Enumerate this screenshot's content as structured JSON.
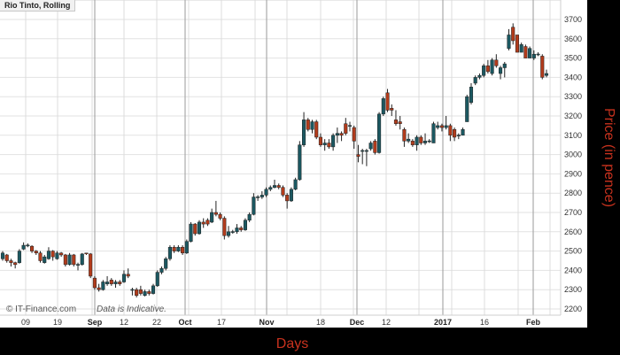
{
  "chart_data": {
    "type": "candlestick",
    "title": "Rio Tinto, Rolling",
    "xlabel": "Days",
    "ylabel": "Price (in pence)",
    "ylim": [
      2170,
      3800
    ],
    "y_ticks": [
      2200,
      2300,
      2400,
      2500,
      2600,
      2700,
      2800,
      2900,
      3000,
      3100,
      3200,
      3300,
      3400,
      3500,
      3600,
      3700
    ],
    "x_tick_labels": [
      "09",
      "19",
      "Sep",
      "12",
      "22",
      "Oct",
      "17",
      "Nov",
      "18",
      "Dec",
      "12",
      "2017",
      "16",
      "Feb"
    ],
    "grid": true,
    "colors": {
      "up": "#1b5861",
      "down": "#b23b1b",
      "axis_title": "#c8321e"
    },
    "ohlc_fields": [
      "open",
      "high",
      "low",
      "close"
    ],
    "candles": [
      [
        2460,
        2500,
        2450,
        2490
      ],
      [
        2480,
        2485,
        2440,
        2450
      ],
      [
        2450,
        2460,
        2420,
        2440
      ],
      [
        2440,
        2445,
        2410,
        2430
      ],
      [
        2440,
        2510,
        2435,
        2500
      ],
      [
        2510,
        2545,
        2505,
        2530
      ],
      [
        2530,
        2540,
        2520,
        2531
      ],
      [
        2525,
        2530,
        2490,
        2500
      ],
      [
        2500,
        2505,
        2480,
        2490
      ],
      [
        2490,
        2500,
        2440,
        2450
      ],
      [
        2440,
        2480,
        2435,
        2470
      ],
      [
        2460,
        2520,
        2455,
        2500
      ],
      [
        2500,
        2505,
        2450,
        2470
      ],
      [
        2460,
        2500,
        2455,
        2490
      ],
      [
        2490,
        2495,
        2470,
        2480
      ],
      [
        2480,
        2485,
        2420,
        2430
      ],
      [
        2430,
        2490,
        2425,
        2480
      ],
      [
        2480,
        2485,
        2420,
        2430
      ],
      [
        2430,
        2440,
        2400,
        2431
      ],
      [
        2430,
        2490,
        2425,
        2485
      ],
      [
        2490,
        2490,
        2480,
        2486
      ],
      [
        2485,
        2490,
        2360,
        2370
      ],
      [
        2360,
        2370,
        2300,
        2310
      ],
      [
        2310,
        2330,
        2290,
        2300
      ],
      [
        2300,
        2350,
        2295,
        2340
      ],
      [
        2330,
        2370,
        2320,
        2340
      ],
      [
        2350,
        2360,
        2320,
        2330
      ],
      [
        2330,
        2350,
        2310,
        2340
      ],
      [
        2340,
        2350,
        2320,
        2330
      ],
      [
        2340,
        2400,
        2335,
        2380
      ],
      [
        2380,
        2410,
        2360,
        2370
      ],
      [
        2300,
        2310,
        2270,
        2301
      ],
      [
        2300,
        2310,
        2260,
        2270
      ],
      [
        2300,
        2320,
        2270,
        2280
      ],
      [
        2270,
        2300,
        2265,
        2290
      ],
      [
        2290,
        2300,
        2270,
        2280
      ],
      [
        2280,
        2330,
        2275,
        2320
      ],
      [
        2320,
        2400,
        2315,
        2390
      ],
      [
        2390,
        2420,
        2380,
        2410
      ],
      [
        2410,
        2470,
        2400,
        2460
      ],
      [
        2460,
        2530,
        2450,
        2520
      ],
      [
        2520,
        2530,
        2490,
        2500
      ],
      [
        2500,
        2530,
        2495,
        2520
      ],
      [
        2520,
        2530,
        2480,
        2490
      ],
      [
        2490,
        2560,
        2485,
        2550
      ],
      [
        2550,
        2650,
        2545,
        2640
      ],
      [
        2640,
        2645,
        2580,
        2590
      ],
      [
        2590,
        2660,
        2585,
        2650
      ],
      [
        2650,
        2670,
        2620,
        2640
      ],
      [
        2660,
        2670,
        2630,
        2640
      ],
      [
        2650,
        2720,
        2645,
        2700
      ],
      [
        2700,
        2760,
        2680,
        2690
      ],
      [
        2690,
        2700,
        2660,
        2670
      ],
      [
        2670,
        2680,
        2560,
        2580
      ],
      [
        2580,
        2630,
        2570,
        2600
      ],
      [
        2600,
        2610,
        2590,
        2601
      ],
      [
        2600,
        2640,
        2590,
        2620
      ],
      [
        2620,
        2630,
        2600,
        2610
      ],
      [
        2610,
        2670,
        2605,
        2660
      ],
      [
        2660,
        2700,
        2650,
        2690
      ],
      [
        2690,
        2800,
        2685,
        2780
      ],
      [
        2780,
        2790,
        2760,
        2781
      ],
      [
        2780,
        2810,
        2770,
        2790
      ],
      [
        2790,
        2830,
        2780,
        2820
      ],
      [
        2820,
        2840,
        2810,
        2830
      ],
      [
        2830,
        2870,
        2825,
        2840
      ],
      [
        2840,
        2850,
        2820,
        2830
      ],
      [
        2830,
        2840,
        2780,
        2790
      ],
      [
        2790,
        2800,
        2720,
        2760
      ],
      [
        2760,
        2830,
        2755,
        2820
      ],
      [
        2820,
        2880,
        2815,
        2870
      ],
      [
        2870,
        3070,
        2865,
        3050
      ],
      [
        3050,
        3220,
        3040,
        3180
      ],
      [
        3180,
        3190,
        3120,
        3130
      ],
      [
        3130,
        3180,
        3110,
        3170
      ],
      [
        3170,
        3180,
        3080,
        3090
      ],
      [
        3090,
        3110,
        3040,
        3050
      ],
      [
        3050,
        3080,
        3020,
        3060
      ],
      [
        3060,
        3080,
        3030,
        3040
      ],
      [
        3040,
        3110,
        3020,
        3100
      ],
      [
        3100,
        3140,
        3060,
        3110
      ],
      [
        3110,
        3120,
        3070,
        3100
      ],
      [
        3160,
        3190,
        3100,
        3110
      ],
      [
        3150,
        3170,
        3120,
        3151
      ],
      [
        3140,
        3150,
        3030,
        3070
      ],
      [
        3000,
        3050,
        2960,
        2990
      ],
      [
        3020,
        3030,
        2950,
        3021
      ],
      [
        3020,
        3030,
        2940,
        3021
      ],
      [
        3030,
        3070,
        3020,
        3060
      ],
      [
        3070,
        3080,
        3000,
        3010
      ],
      [
        3010,
        3220,
        3005,
        3210
      ],
      [
        3210,
        3300,
        3200,
        3290
      ],
      [
        3320,
        3340,
        3220,
        3230
      ],
      [
        3240,
        3260,
        3200,
        3230
      ],
      [
        3180,
        3230,
        3150,
        3160
      ],
      [
        3170,
        3200,
        3130,
        3160
      ],
      [
        3130,
        3140,
        3040,
        3070
      ],
      [
        3070,
        3110,
        3060,
        3080
      ],
      [
        3070,
        3080,
        3040,
        3050
      ],
      [
        3050,
        3100,
        3020,
        3090
      ],
      [
        3090,
        3100,
        3050,
        3060
      ],
      [
        3060,
        3110,
        3050,
        3070
      ],
      [
        3070,
        3080,
        3060,
        3071
      ],
      [
        3060,
        3170,
        3060,
        3160
      ],
      [
        3140,
        3170,
        3130,
        3150
      ],
      [
        3150,
        3160,
        3120,
        3140
      ],
      [
        3140,
        3200,
        3130,
        3150
      ],
      [
        3150,
        3160,
        3070,
        3100
      ],
      [
        3130,
        3140,
        3070,
        3090
      ],
      [
        3100,
        3110,
        3080,
        3101
      ],
      [
        3100,
        3140,
        3100,
        3130
      ],
      [
        3170,
        3310,
        3170,
        3300
      ],
      [
        3270,
        3370,
        3260,
        3350
      ],
      [
        3370,
        3410,
        3360,
        3400
      ],
      [
        3400,
        3420,
        3390,
        3410
      ],
      [
        3410,
        3470,
        3400,
        3460
      ],
      [
        3460,
        3490,
        3420,
        3430
      ],
      [
        3420,
        3500,
        3410,
        3490
      ],
      [
        3490,
        3520,
        3450,
        3460
      ],
      [
        3420,
        3460,
        3390,
        3450
      ],
      [
        3450,
        3480,
        3400,
        3470
      ],
      [
        3550,
        3650,
        3540,
        3620
      ],
      [
        3660,
        3680,
        3570,
        3590
      ],
      [
        3620,
        3620,
        3530,
        3530
      ],
      [
        3530,
        3580,
        3530,
        3570
      ],
      [
        3560,
        3570,
        3500,
        3500
      ],
      [
        3500,
        3560,
        3500,
        3550
      ],
      [
        3500,
        3540,
        3490,
        3520
      ],
      [
        3520,
        3530,
        3510,
        3521
      ],
      [
        3510,
        3520,
        3390,
        3400
      ],
      [
        3410,
        3440,
        3400,
        3420
      ]
    ]
  },
  "watermark": {
    "copyright": "© IT-Finance.com",
    "note": "Data is Indicative."
  }
}
